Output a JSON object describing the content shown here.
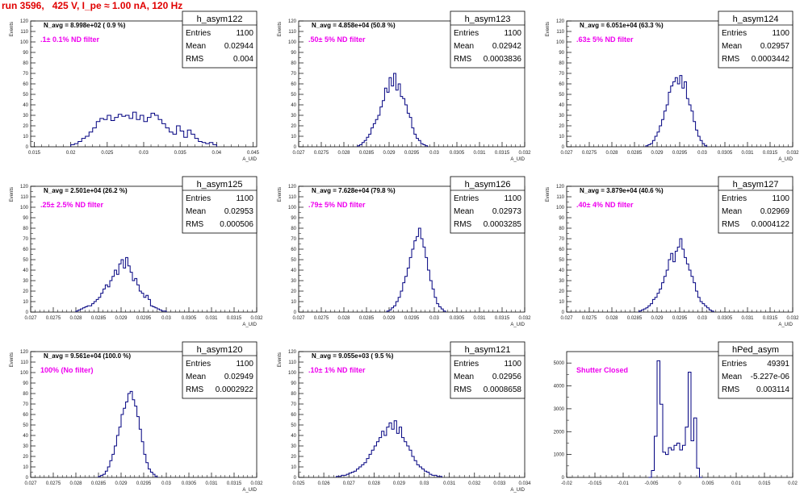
{
  "page_title": "run 3596,   425 V, I_pe ≈ 1.00 nA, 120 Hz",
  "colors": {
    "title": "#e00000",
    "hist": "#000080",
    "annotation": "#ee00ee"
  },
  "chart_data": [
    {
      "type": "histogram",
      "name": "h_asym122",
      "ylabel": "Events",
      "xlabel": "A_UID",
      "annotation": "N_avg = 8.998e+02 ( 0.9 %)",
      "filter_label": ".1± 0.1% ND filter",
      "stats": {
        "entries": "1100",
        "mean": "0.02944",
        "rms": "0.004"
      },
      "xlim": [
        0.0145,
        0.0455
      ],
      "ylim": [
        0,
        120
      ],
      "xticks": [
        0.015,
        0.02,
        0.025,
        0.03,
        0.035,
        0.04,
        0.045
      ],
      "xtick_labels": [
        "0.015",
        "0.02",
        "0.025",
        "0.03",
        "0.035",
        "0.04",
        "0.045"
      ],
      "yticks": [
        0,
        10,
        20,
        30,
        40,
        50,
        60,
        70,
        80,
        90,
        100,
        110,
        120
      ],
      "x_start": 0.02,
      "bin_width": 0.0005,
      "counts": [
        2,
        3,
        5,
        8,
        10,
        14,
        18,
        24,
        27,
        26,
        30,
        25,
        28,
        31,
        29,
        30,
        27,
        33,
        26,
        30,
        24,
        28,
        32,
        30,
        26,
        22,
        18,
        14,
        12,
        20,
        15,
        9,
        16,
        12,
        8,
        5,
        4,
        3,
        4,
        2
      ]
    },
    {
      "type": "histogram",
      "name": "h_asym123",
      "ylabel": "Events",
      "xlabel": "A_UID",
      "annotation": "N_avg = 4.858e+04 (50.8 %)",
      "filter_label": ".50± 5% ND filter",
      "stats": {
        "entries": "1100",
        "mean": "0.02942",
        "rms": "0.0003836"
      },
      "xlim": [
        0.027,
        0.032
      ],
      "ylim": [
        0,
        120
      ],
      "xticks": [
        0.027,
        0.0275,
        0.028,
        0.0285,
        0.029,
        0.0295,
        0.03,
        0.0305,
        0.031,
        0.0315,
        0.032
      ],
      "xtick_labels": [
        "0.027",
        "0.0275",
        "0.028",
        "0.0285",
        "0.029",
        "0.0295",
        "0.03",
        "0.0305",
        "0.031",
        "0.0315",
        "0.032"
      ],
      "yticks": [
        0,
        10,
        20,
        30,
        40,
        50,
        60,
        70,
        80,
        90,
        100,
        110,
        120
      ],
      "x_start": 0.0283,
      "bin_width": 5e-05,
      "counts": [
        1,
        2,
        4,
        6,
        9,
        12,
        18,
        22,
        26,
        30,
        38,
        44,
        56,
        52,
        66,
        58,
        70,
        54,
        60,
        48,
        46,
        40,
        32,
        28,
        18,
        12,
        8,
        6,
        3,
        2,
        1
      ]
    },
    {
      "type": "histogram",
      "name": "h_asym124",
      "ylabel": "Events",
      "xlabel": "A_UID",
      "annotation": "N_avg = 6.051e+04 (63.3 %)",
      "filter_label": ".63± 5% ND filter",
      "stats": {
        "entries": "1100",
        "mean": "0.02957",
        "rms": "0.0003442"
      },
      "xlim": [
        0.027,
        0.032
      ],
      "ylim": [
        0,
        120
      ],
      "xticks": [
        0.027,
        0.0275,
        0.028,
        0.0285,
        0.029,
        0.0295,
        0.03,
        0.0305,
        0.031,
        0.0315,
        0.032
      ],
      "xtick_labels": [
        "0.027",
        "0.0275",
        "0.028",
        "0.0285",
        "0.029",
        "0.0295",
        "0.03",
        "0.0305",
        "0.031",
        "0.0315",
        "0.032"
      ],
      "yticks": [
        0,
        10,
        20,
        30,
        40,
        50,
        60,
        70,
        80,
        90,
        100,
        110,
        120
      ],
      "x_start": 0.02875,
      "bin_width": 5e-05,
      "counts": [
        1,
        2,
        3,
        6,
        10,
        14,
        20,
        26,
        34,
        40,
        52,
        58,
        62,
        66,
        60,
        68,
        56,
        62,
        46,
        40,
        34,
        24,
        16,
        10,
        6,
        3,
        1
      ]
    },
    {
      "type": "histogram",
      "name": "h_asym125",
      "ylabel": "Events",
      "xlabel": "A_UID",
      "annotation": "N_avg = 2.501e+04 (26.2 %)",
      "filter_label": ".25± 2.5% ND filter",
      "stats": {
        "entries": "1100",
        "mean": "0.02953",
        "rms": "0.000506"
      },
      "xlim": [
        0.027,
        0.032
      ],
      "ylim": [
        0,
        120
      ],
      "xticks": [
        0.027,
        0.0275,
        0.028,
        0.0285,
        0.029,
        0.0295,
        0.03,
        0.0305,
        0.031,
        0.0315,
        0.032
      ],
      "xtick_labels": [
        "0.027",
        "0.0275",
        "0.028",
        "0.0285",
        "0.029",
        "0.0295",
        "0.03",
        "0.0305",
        "0.031",
        "0.0315",
        "0.032"
      ],
      "yticks": [
        0,
        10,
        20,
        30,
        40,
        50,
        60,
        70,
        80,
        90,
        100,
        110,
        120
      ],
      "x_start": 0.028,
      "bin_width": 5e-05,
      "counts": [
        1,
        2,
        3,
        4,
        5,
        6,
        6,
        8,
        10,
        12,
        14,
        18,
        22,
        26,
        24,
        30,
        34,
        40,
        36,
        46,
        50,
        42,
        52,
        44,
        38,
        30,
        32,
        26,
        20,
        18,
        14,
        16,
        12,
        6,
        5,
        4,
        3,
        2,
        1,
        1
      ]
    },
    {
      "type": "histogram",
      "name": "h_asym126",
      "ylabel": "Events",
      "xlabel": "A_UID",
      "annotation": "N_avg = 7.628e+04 (79.8 %)",
      "filter_label": ".79± 5% ND filter",
      "stats": {
        "entries": "1100",
        "mean": "0.02973",
        "rms": "0.0003285"
      },
      "xlim": [
        0.027,
        0.032
      ],
      "ylim": [
        0,
        120
      ],
      "xticks": [
        0.027,
        0.0275,
        0.028,
        0.0285,
        0.029,
        0.0295,
        0.03,
        0.0305,
        0.031,
        0.0315,
        0.032
      ],
      "xtick_labels": [
        "0.027",
        "0.0275",
        "0.028",
        "0.0285",
        "0.029",
        "0.0295",
        "0.03",
        "0.0305",
        "0.031",
        "0.0315",
        "0.032"
      ],
      "yticks": [
        0,
        10,
        20,
        30,
        40,
        50,
        60,
        70,
        80,
        90,
        100,
        110,
        120
      ],
      "x_start": 0.02895,
      "bin_width": 5e-05,
      "counts": [
        1,
        2,
        4,
        6,
        10,
        14,
        20,
        28,
        34,
        42,
        52,
        60,
        68,
        72,
        80,
        70,
        62,
        52,
        40,
        30,
        22,
        14,
        8,
        5,
        3,
        1
      ]
    },
    {
      "type": "histogram",
      "name": "h_asym127",
      "ylabel": "Events",
      "xlabel": "A_UID",
      "annotation": "N_avg = 3.879e+04 (40.6 %)",
      "filter_label": ".40± 4% ND filter",
      "stats": {
        "entries": "1100",
        "mean": "0.02969",
        "rms": "0.0004122"
      },
      "xlim": [
        0.027,
        0.032
      ],
      "ylim": [
        0,
        120
      ],
      "xticks": [
        0.027,
        0.0275,
        0.028,
        0.0285,
        0.029,
        0.0295,
        0.03,
        0.0305,
        0.031,
        0.0315,
        0.032
      ],
      "xtick_labels": [
        "0.027",
        "0.0275",
        "0.028",
        "0.0285",
        "0.029",
        "0.0295",
        "0.03",
        "0.0305",
        "0.031",
        "0.0315",
        "0.032"
      ],
      "yticks": [
        0,
        10,
        20,
        30,
        40,
        50,
        60,
        70,
        80,
        90,
        100,
        110,
        120
      ],
      "x_start": 0.0286,
      "bin_width": 5e-05,
      "counts": [
        1,
        2,
        3,
        4,
        6,
        8,
        12,
        14,
        18,
        22,
        28,
        34,
        40,
        50,
        56,
        48,
        58,
        62,
        70,
        60,
        52,
        46,
        40,
        34,
        28,
        20,
        14,
        10,
        8,
        6,
        4,
        2,
        1
      ]
    },
    {
      "type": "histogram",
      "name": "h_asym120",
      "ylabel": "Events",
      "xlabel": "A_UID",
      "annotation": "N_avg = 9.561e+04 (100.0 %)",
      "filter_label": "100% (No filter)",
      "stats": {
        "entries": "1100",
        "mean": "0.02949",
        "rms": "0.0002922"
      },
      "xlim": [
        0.027,
        0.032
      ],
      "ylim": [
        0,
        120
      ],
      "xticks": [
        0.027,
        0.0275,
        0.028,
        0.0285,
        0.029,
        0.0295,
        0.03,
        0.0305,
        0.031,
        0.0315,
        0.032
      ],
      "xtick_labels": [
        "0.027",
        "0.0275",
        "0.028",
        "0.0285",
        "0.029",
        "0.0295",
        "0.03",
        "0.0305",
        "0.031",
        "0.0315",
        "0.032"
      ],
      "yticks": [
        0,
        10,
        20,
        30,
        40,
        50,
        60,
        70,
        80,
        90,
        100,
        110,
        120
      ],
      "x_start": 0.0285,
      "bin_width": 5e-05,
      "counts": [
        1,
        2,
        3,
        6,
        10,
        16,
        22,
        30,
        40,
        48,
        60,
        66,
        72,
        80,
        82,
        74,
        68,
        58,
        46,
        34,
        22,
        14,
        8,
        5,
        3,
        1
      ]
    },
    {
      "type": "histogram",
      "name": "h_asym121",
      "ylabel": "Events",
      "xlabel": "A_UID",
      "annotation": "N_avg = 9.055e+03 ( 9.5 %)",
      "filter_label": ".10± 1% ND filter",
      "stats": {
        "entries": "1100",
        "mean": "0.02956",
        "rms": "0.0008658"
      },
      "xlim": [
        0.025,
        0.034
      ],
      "ylim": [
        0,
        120
      ],
      "xticks": [
        0.025,
        0.026,
        0.027,
        0.028,
        0.029,
        0.03,
        0.031,
        0.032,
        0.033,
        0.034
      ],
      "xtick_labels": [
        "0.025",
        "0.026",
        "0.027",
        "0.028",
        "0.029",
        "0.03",
        "0.031",
        "0.032",
        "0.033",
        "0.034"
      ],
      "yticks": [
        0,
        10,
        20,
        30,
        40,
        50,
        60,
        70,
        80,
        90,
        100,
        110,
        120
      ],
      "x_start": 0.0265,
      "bin_width": 0.0001,
      "counts": [
        1,
        1,
        2,
        2,
        3,
        4,
        5,
        6,
        8,
        10,
        12,
        14,
        18,
        22,
        26,
        30,
        34,
        38,
        44,
        40,
        48,
        52,
        46,
        54,
        42,
        48,
        38,
        34,
        30,
        26,
        20,
        16,
        12,
        10,
        8,
        6,
        5,
        3,
        2,
        2,
        1,
        1
      ]
    },
    {
      "type": "histogram",
      "name": "hPed_asym",
      "ylabel": "",
      "xlabel": "",
      "annotation": "",
      "filter_label": "Shutter Closed",
      "stats": {
        "entries": "49391",
        "mean": "-5.227e-06",
        "rms": "0.003114"
      },
      "xlim": [
        -0.02,
        0.02
      ],
      "ylim": [
        0,
        5500
      ],
      "xticks": [
        -0.02,
        -0.015,
        -0.01,
        -0.005,
        0,
        0.005,
        0.01,
        0.015,
        0.02
      ],
      "xtick_labels": [
        "-0.02",
        "-0.015",
        "-0.01",
        "-0.005",
        "0",
        "0.005",
        "0.01",
        "0.015",
        "0.02"
      ],
      "yticks": [
        0,
        1000,
        2000,
        3000,
        4000,
        5000
      ],
      "x_start": -0.0055,
      "bin_width": 0.0005,
      "counts": [
        0,
        300,
        1800,
        5100,
        3200,
        1100,
        1000,
        1300,
        1200,
        1400,
        1500,
        1200,
        1400,
        2200,
        4600,
        1600,
        2600,
        400,
        0
      ]
    }
  ]
}
